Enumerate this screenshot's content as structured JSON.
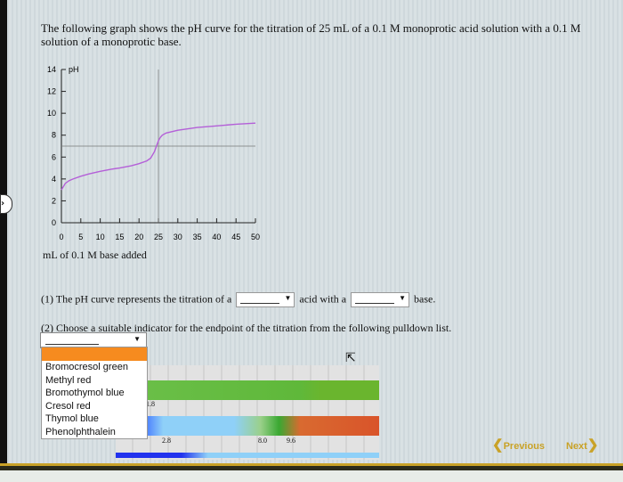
{
  "question": {
    "intro": "The following graph shows the pH curve for the titration of 25 mL of a 0.1 M monoprotic acid solution with a 0.1 M solution of a monoprotic base.",
    "q1": {
      "prefix": "(1) The pH curve represents the titration of a",
      "middle": "acid with a",
      "suffix": "base."
    },
    "q2": {
      "text": "(2) Choose a suitable indicator for the endpoint of the titration from the following pulldown list."
    }
  },
  "indicator_dropdown": {
    "options": [
      "Bromocresol green",
      "Methyl red",
      "Bromothymol blue",
      "Cresol red",
      "Thymol blue",
      "Phenolphthalein"
    ],
    "highlight_color": "#f68b1f"
  },
  "indicator_chart": {
    "labels": [
      "1.8",
      "2.8",
      "8.0",
      "9.6"
    ]
  },
  "nav": {
    "previous": "Previous",
    "next": "Next",
    "accent": "#c9a227"
  },
  "chart_data": {
    "type": "line",
    "ylabel": "pH",
    "xlabel": "mL of 0.1 M base added",
    "xlim": [
      0,
      50
    ],
    "ylim": [
      0,
      14
    ],
    "xticks": [
      "0",
      "5",
      "10",
      "15",
      "20",
      "25",
      "30",
      "35",
      "40",
      "45",
      "50"
    ],
    "yticks": [
      "0",
      "2",
      "4",
      "6",
      "8",
      "10",
      "12",
      "14"
    ],
    "reference_lines": {
      "equivalence_volume": 25,
      "ph": 7
    },
    "curve_color": "#b45fd8",
    "x": [
      0,
      0.5,
      1,
      2,
      3,
      5,
      7,
      10,
      13,
      15,
      18,
      20,
      22,
      23,
      24,
      24.5,
      25,
      25.5,
      26,
      27,
      30,
      35,
      40,
      45,
      50
    ],
    "y": [
      3.0,
      3.3,
      3.6,
      3.85,
      4.0,
      4.25,
      4.45,
      4.7,
      4.9,
      5.0,
      5.2,
      5.4,
      5.65,
      5.9,
      6.5,
      7.0,
      7.5,
      7.8,
      8.0,
      8.2,
      8.45,
      8.7,
      8.85,
      9.0,
      9.1
    ]
  }
}
